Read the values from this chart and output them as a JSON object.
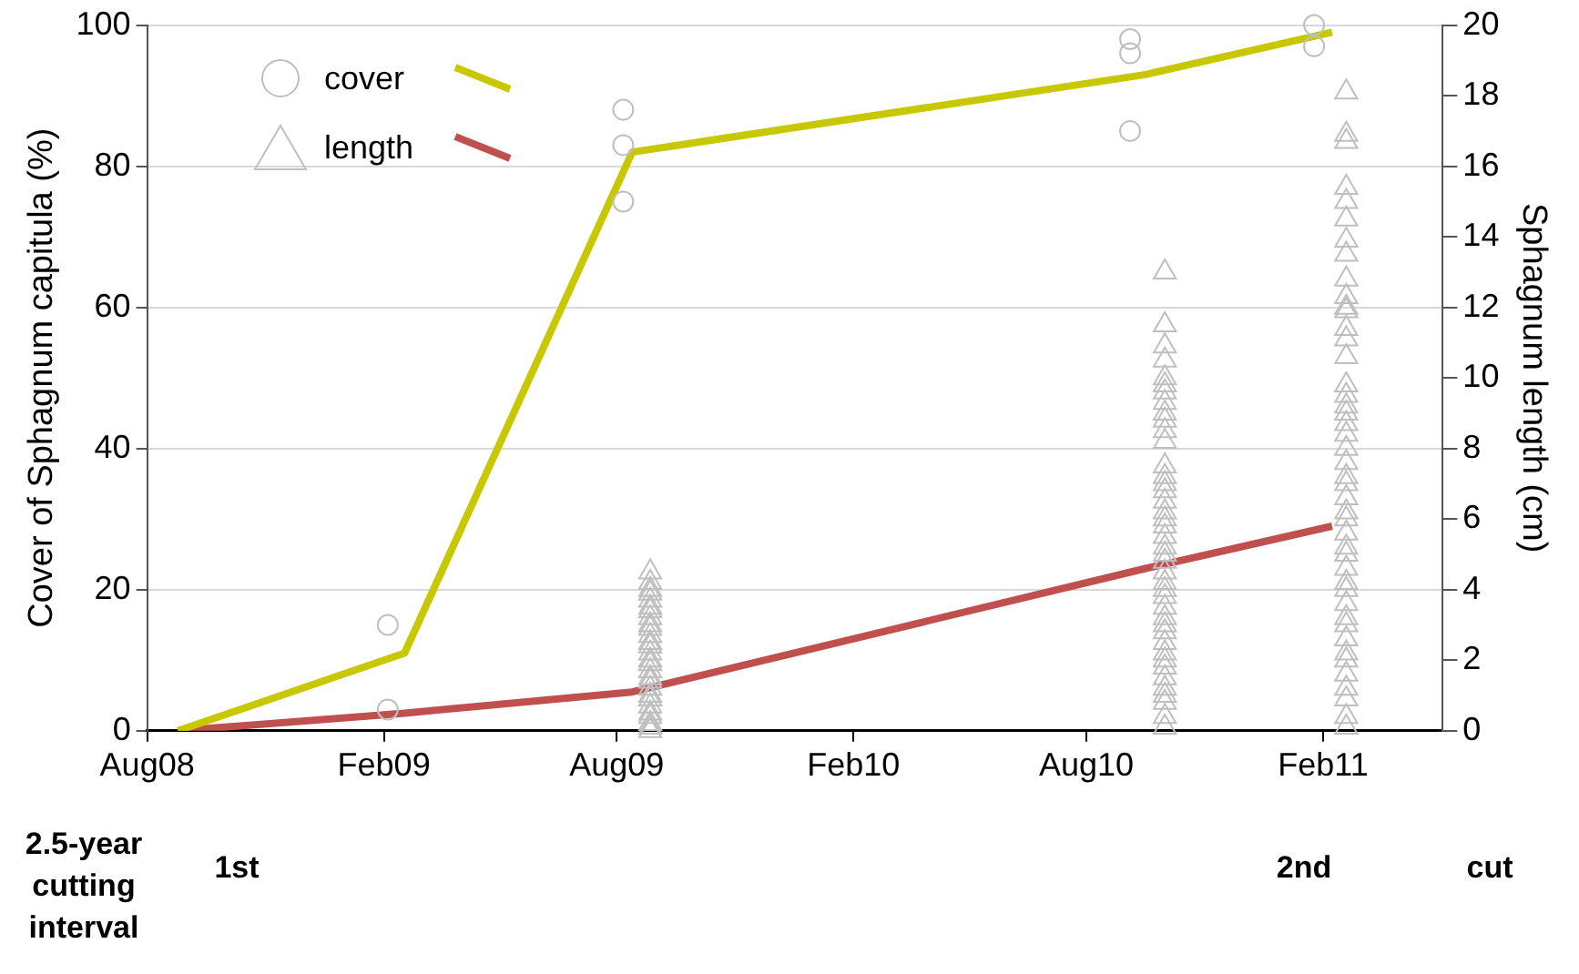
{
  "chart_data": {
    "type": "line",
    "xlabel": null,
    "ylabel": "Cover of Sphagnum capitula (%)",
    "y2label": "Sphagnum length (cm)",
    "xlim": [
      "2008-08-01",
      "2011-05-05"
    ],
    "xticks": [
      {
        "value": "2008-08",
        "label": "Aug08"
      },
      {
        "value": "2009-02",
        "label": "Feb09"
      },
      {
        "value": "2009-08",
        "label": "Aug09"
      },
      {
        "value": "2010-02",
        "label": "Feb10"
      },
      {
        "value": "2010-08",
        "label": "Aug10"
      },
      {
        "value": "2011-02",
        "label": "Feb11"
      }
    ],
    "ylim": [
      0,
      100
    ],
    "yticks": [
      0,
      20,
      40,
      60,
      80,
      100
    ],
    "y2lim": [
      0,
      20
    ],
    "y2ticks": [
      0,
      2,
      4,
      6,
      8,
      10,
      12,
      14,
      16,
      18,
      20
    ],
    "grid": "y",
    "legend": "top left",
    "annotations": [
      "2.5-year cutting interval",
      "1st",
      "2nd",
      "cut"
    ],
    "series": [
      {
        "name": "cover",
        "type": "scatter",
        "marker": "circle",
        "color": "#bfbfbf",
        "x": [
          "2009-02-04",
          "2009-02-04",
          "2009-08-06",
          "2009-08-06",
          "2009-08-06",
          "2010-09-04",
          "2010-09-04",
          "2010-09-04",
          "2011-01-25",
          "2011-01-25"
        ],
        "values": [
          15,
          3,
          88,
          83,
          75,
          98,
          96,
          85,
          100,
          97
        ]
      },
      {
        "name": "length",
        "type": "scatter",
        "marker": "triangle",
        "color": "#bfbfbf",
        "axis": "y2",
        "x": [
          "2009-08-27",
          "2009-08-27",
          "2009-08-27",
          "2009-08-27",
          "2009-08-27",
          "2009-08-27",
          "2009-08-27",
          "2009-08-27",
          "2009-08-27",
          "2009-08-27",
          "2009-08-27",
          "2009-08-27",
          "2009-08-27",
          "2009-08-27",
          "2009-08-27",
          "2009-08-27",
          "2009-08-27",
          "2009-08-27",
          "2009-08-27",
          "2009-08-27",
          "2009-08-27",
          "2009-08-27",
          "2009-08-27",
          "2009-08-27",
          "2009-08-27",
          "2009-08-27",
          "2009-08-27",
          "2009-08-27",
          "2010-10-01",
          "2010-10-01",
          "2010-10-01",
          "2010-10-01",
          "2010-10-01",
          "2010-10-01",
          "2010-10-01",
          "2010-10-01",
          "2010-10-01",
          "2010-10-01",
          "2010-10-01",
          "2010-10-01",
          "2010-10-01",
          "2010-10-01",
          "2010-10-01",
          "2010-10-01",
          "2010-10-01",
          "2010-10-01",
          "2010-10-01",
          "2010-10-01",
          "2010-10-01",
          "2010-10-01",
          "2010-10-01",
          "2010-10-01",
          "2010-10-01",
          "2010-10-01",
          "2010-10-01",
          "2010-10-01",
          "2010-10-01",
          "2010-10-01",
          "2010-10-01",
          "2010-10-01",
          "2010-10-01",
          "2010-10-01",
          "2010-10-01",
          "2010-10-01",
          "2010-10-01",
          "2010-10-01",
          "2010-10-01",
          "2010-10-01",
          "2010-10-01",
          "2010-10-01",
          "2011-02-19",
          "2011-02-19",
          "2011-02-19",
          "2011-02-19",
          "2011-02-19",
          "2011-02-19",
          "2011-02-19",
          "2011-02-19",
          "2011-02-19",
          "2011-02-19",
          "2011-02-19",
          "2011-02-19",
          "2011-02-19",
          "2011-02-19",
          "2011-02-19",
          "2011-02-19",
          "2011-02-19",
          "2011-02-19",
          "2011-02-19",
          "2011-02-19",
          "2011-02-19",
          "2011-02-19",
          "2011-02-19",
          "2011-02-19",
          "2011-02-19",
          "2011-02-19",
          "2011-02-19",
          "2011-02-19",
          "2011-02-19",
          "2011-02-19",
          "2011-02-19",
          "2011-02-19",
          "2011-02-19",
          "2011-02-19",
          "2011-02-19",
          "2011-02-19",
          "2011-02-19",
          "2011-02-19",
          "2011-02-19",
          "2011-02-19",
          "2011-02-19",
          "2011-02-19",
          "2011-02-19",
          "2011-02-19",
          "2011-02-19"
        ],
        "values": [
          4.5,
          4.2,
          4.0,
          3.9,
          3.7,
          3.5,
          3.4,
          3.2,
          3.0,
          2.9,
          2.7,
          2.5,
          2.4,
          2.2,
          2.0,
          1.9,
          1.7,
          1.5,
          1.4,
          1.2,
          1.0,
          0.9,
          0.7,
          0.5,
          0.4,
          0.2,
          0.1,
          0,
          13.0,
          11.5,
          10.9,
          10.5,
          10.0,
          9.8,
          9.6,
          9.3,
          9.0,
          8.8,
          8.5,
          8.2,
          7.5,
          7.2,
          7.0,
          6.8,
          6.5,
          6.2,
          6.0,
          5.8,
          5.5,
          5.2,
          5.0,
          4.8,
          4.5,
          4.2,
          4.0,
          3.8,
          3.5,
          3.2,
          3.0,
          2.8,
          2.5,
          2.2,
          2.0,
          1.8,
          1.5,
          1.2,
          1.0,
          0.8,
          0.4,
          0.1,
          18.1,
          16.9,
          16.7,
          15.4,
          15.0,
          14.5,
          13.9,
          13.5,
          12.8,
          12.3,
          12.0,
          11.9,
          11.4,
          11.1,
          10.6,
          9.8,
          9.5,
          9.2,
          9.0,
          8.7,
          8.4,
          8.0,
          7.6,
          7.2,
          7.0,
          6.6,
          6.2,
          6.0,
          5.6,
          5.2,
          5.0,
          4.6,
          4.2,
          4.0,
          3.6,
          3.2,
          3.0,
          2.6,
          2.2,
          2.0,
          1.6,
          1.2,
          0.9,
          0.4,
          0.1
        ]
      },
      {
        "color": "#c8c800",
        "x": [
          "2008-08-25",
          "2009-02-17",
          "2009-08-13",
          "2010-09-16",
          "2011-02-08"
        ],
        "values": [
          0,
          11,
          82,
          93,
          99
        ]
      },
      {
        "color": "#c0504d",
        "axis": "y2",
        "x": [
          "2008-08-25",
          "2009-02-17",
          "2009-08-13",
          "2010-09-16",
          "2011-02-08"
        ],
        "values": [
          0,
          0.5,
          1.1,
          4.6,
          5.8
        ]
      }
    ]
  }
}
